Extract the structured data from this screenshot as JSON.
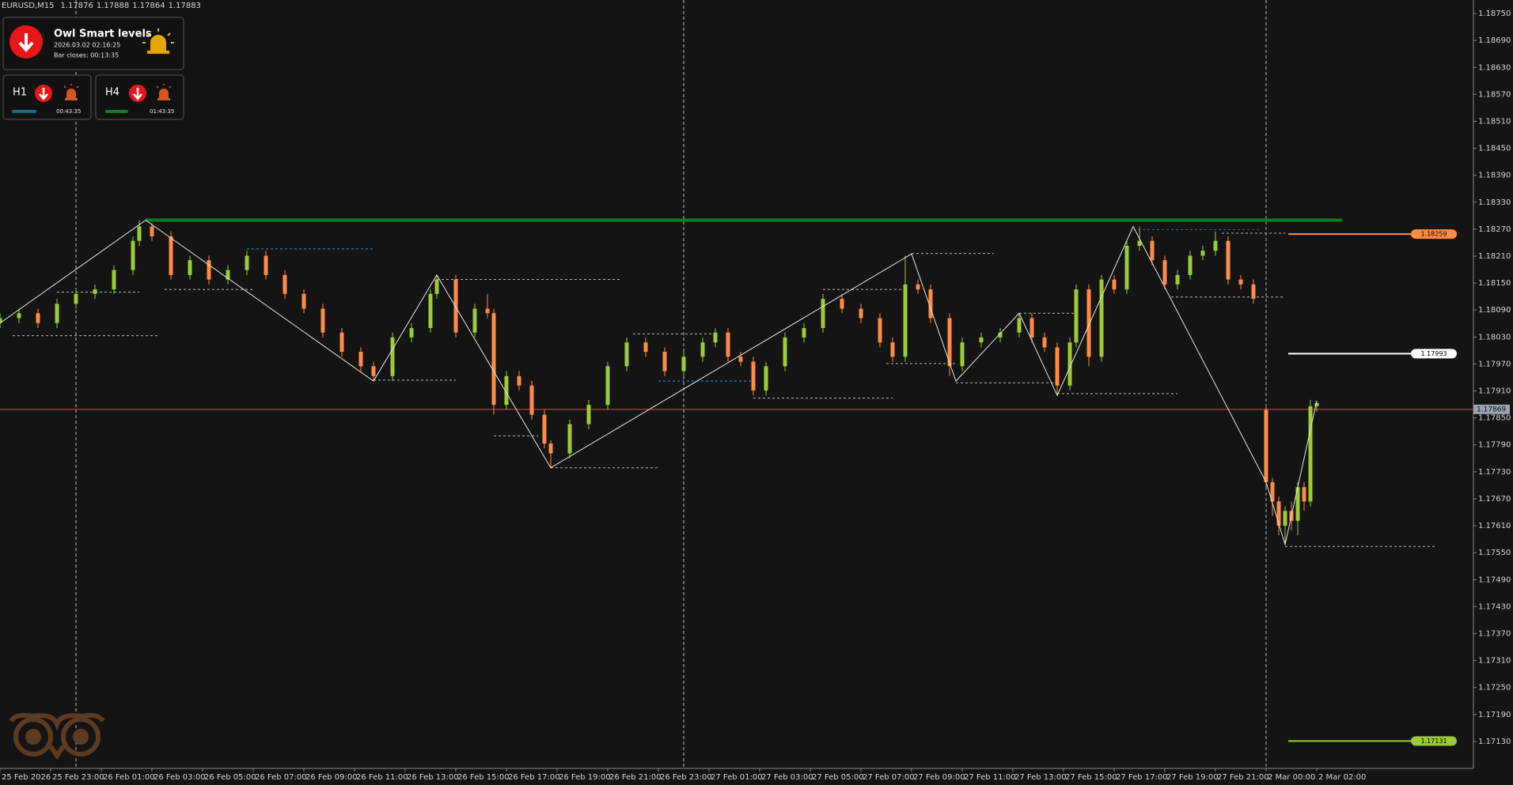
{
  "chart_data": {
    "type": "candlestick",
    "title": "EURUSD,M15",
    "header_ohlc": [
      1.17876,
      1.17888,
      1.17864,
      1.17883
    ],
    "xlim": [
      0,
      232.75
    ],
    "ylim": [
      1.1707,
      1.1878
    ],
    "xticks": [
      {
        "value": 0,
        "label": "25 Feb 2026"
      },
      {
        "value": 8,
        "label": "25 Feb 23:00"
      },
      {
        "value": 16,
        "label": "26 Feb 01:00"
      },
      {
        "value": 24,
        "label": "26 Feb 03:00"
      },
      {
        "value": 32,
        "label": "26 Feb 05:00"
      },
      {
        "value": 40,
        "label": "26 Feb 07:00"
      },
      {
        "value": 48,
        "label": "26 Feb 09:00"
      },
      {
        "value": 56,
        "label": "26 Feb 11:00"
      },
      {
        "value": 64,
        "label": "26 Feb 13:00"
      },
      {
        "value": 72,
        "label": "26 Feb 15:00"
      },
      {
        "value": 80,
        "label": "26 Feb 17:00"
      },
      {
        "value": 88,
        "label": "26 Feb 19:00"
      },
      {
        "value": 96,
        "label": "26 Feb 21:00"
      },
      {
        "value": 104,
        "label": "26 Feb 23:00"
      },
      {
        "value": 112,
        "label": "27 Feb 01:00"
      },
      {
        "value": 120,
        "label": "27 Feb 03:00"
      },
      {
        "value": 128,
        "label": "27 Feb 05:00"
      },
      {
        "value": 136,
        "label": "27 Feb 07:00"
      },
      {
        "value": 144,
        "label": "27 Feb 09:00"
      },
      {
        "value": 152,
        "label": "27 Feb 11:00"
      },
      {
        "value": 160,
        "label": "27 Feb 13:00"
      },
      {
        "value": 168,
        "label": "27 Feb 15:00"
      },
      {
        "value": 176,
        "label": "27 Feb 17:00"
      },
      {
        "value": 184,
        "label": "27 Feb 19:00"
      },
      {
        "value": 192,
        "label": "27 Feb 21:00"
      },
      {
        "value": 200,
        "label": "2 Mar 00:00"
      },
      {
        "value": 208,
        "label": "2 Mar 02:00"
      }
    ],
    "yticks": [
      {
        "value": 1.1875,
        "label": "1.18750"
      },
      {
        "value": 1.1869,
        "label": "1.18690"
      },
      {
        "value": 1.1863,
        "label": "1.18630"
      },
      {
        "value": 1.1857,
        "label": "1.18570"
      },
      {
        "value": 1.1851,
        "label": "1.18510"
      },
      {
        "value": 1.1845,
        "label": "1.18450"
      },
      {
        "value": 1.1839,
        "label": "1.18390"
      },
      {
        "value": 1.1833,
        "label": "1.18330"
      },
      {
        "value": 1.1827,
        "label": "1.18270"
      },
      {
        "value": 1.1821,
        "label": "1.18210"
      },
      {
        "value": 1.1815,
        "label": "1.18150"
      },
      {
        "value": 1.1809,
        "label": "1.18090"
      },
      {
        "value": 1.1803,
        "label": "1.18030"
      },
      {
        "value": 1.1797,
        "label": "1.17970"
      },
      {
        "value": 1.1791,
        "label": "1.17910"
      },
      {
        "value": 1.1785,
        "label": "1.17850"
      },
      {
        "value": 1.1779,
        "label": "1.17790"
      },
      {
        "value": 1.1773,
        "label": "1.17730"
      },
      {
        "value": 1.1767,
        "label": "1.17670"
      },
      {
        "value": 1.1761,
        "label": "1.17610"
      },
      {
        "value": 1.1755,
        "label": "1.17550"
      },
      {
        "value": 1.1749,
        "label": "1.17490"
      },
      {
        "value": 1.1743,
        "label": "1.17430"
      },
      {
        "value": 1.1737,
        "label": "1.17370"
      },
      {
        "value": 1.1731,
        "label": "1.17310"
      },
      {
        "value": 1.1725,
        "label": "1.17250"
      },
      {
        "value": 1.1719,
        "label": "1.17190"
      },
      {
        "value": 1.1713,
        "label": "1.17130"
      }
    ],
    "xlines": [
      12,
      108,
      200
    ],
    "up_color": "#9acd32",
    "down_color": "#ff8c42",
    "x": [
      0,
      3,
      6,
      9,
      12,
      15,
      18,
      21,
      22,
      24,
      27,
      30,
      33,
      36,
      39,
      42,
      45,
      48,
      51,
      54,
      57,
      59,
      62,
      65,
      68,
      69,
      72,
      75,
      77,
      78,
      80,
      82,
      84,
      86,
      87,
      90,
      93,
      96,
      99,
      102,
      105,
      108,
      111,
      113,
      115,
      117,
      119,
      121,
      124,
      127,
      130,
      133,
      136,
      139,
      141,
      143,
      145,
      147,
      150,
      152,
      155,
      158,
      161,
      163,
      165,
      167,
      169,
      170,
      172,
      174,
      176,
      178,
      180,
      182,
      184,
      186,
      188,
      190,
      192,
      194,
      196,
      198,
      200,
      201,
      202,
      203,
      204,
      205,
      206,
      207,
      208
    ],
    "open": [
      1.18061,
      1.18072,
      1.18083,
      1.18061,
      1.18104,
      1.18126,
      1.18136,
      1.18179,
      1.18244,
      1.18276,
      1.18254,
      1.18168,
      1.18201,
      1.18158,
      1.18179,
      1.18211,
      1.18168,
      1.18126,
      1.18093,
      1.1804,
      1.17997,
      1.17965,
      1.17943,
      1.18029,
      1.1805,
      1.18126,
      1.18158,
      1.1804,
      1.18093,
      1.18083,
      1.17879,
      1.17943,
      1.17922,
      1.17857,
      1.17793,
      1.17771,
      1.17836,
      1.17879,
      1.17965,
      1.18018,
      1.17997,
      1.17954,
      1.17986,
      1.18018,
      1.1804,
      1.17986,
      1.17975,
      1.17911,
      1.17965,
      1.18029,
      1.1805,
      1.18115,
      1.18093,
      1.18072,
      1.18018,
      1.17986,
      1.18147,
      1.18136,
      1.18072,
      1.17965,
      1.18018,
      1.18029,
      1.1804,
      1.18072,
      1.18029,
      1.18007,
      1.17922,
      1.18018,
      1.18136,
      1.17986,
      1.18158,
      1.18136,
      1.18233,
      1.18244,
      1.18201,
      1.18147,
      1.18168,
      1.18211,
      1.18222,
      1.18244,
      1.18158,
      1.18147,
      1.17868,
      1.17707,
      1.17664,
      1.1761,
      1.17643,
      1.17621,
      1.17696,
      1.17664,
      1.17876
    ],
    "high": [
      1.18083,
      1.18093,
      1.18093,
      1.18115,
      1.18136,
      1.18147,
      1.1819,
      1.18254,
      1.1829,
      1.18283,
      1.18265,
      1.18211,
      1.18211,
      1.1819,
      1.18222,
      1.18222,
      1.18179,
      1.18136,
      1.18104,
      1.1805,
      1.18007,
      1.17975,
      1.1804,
      1.18061,
      1.18136,
      1.18168,
      1.18168,
      1.18104,
      1.18126,
      1.18093,
      1.17954,
      1.17954,
      1.17932,
      1.17868,
      1.178,
      1.17846,
      1.1789,
      1.17975,
      1.18029,
      1.18029,
      1.18007,
      1.17997,
      1.18029,
      1.1805,
      1.1805,
      1.17997,
      1.17986,
      1.17975,
      1.1804,
      1.18061,
      1.18126,
      1.18126,
      1.18104,
      1.18083,
      1.18029,
      1.18211,
      1.18158,
      1.18147,
      1.18083,
      1.18029,
      1.1804,
      1.1805,
      1.18083,
      1.18083,
      1.1804,
      1.18018,
      1.18029,
      1.18147,
      1.18147,
      1.18168,
      1.18168,
      1.18244,
      1.18276,
      1.18254,
      1.18211,
      1.18179,
      1.18222,
      1.18233,
      1.18265,
      1.18254,
      1.18168,
      1.18158,
      1.17879,
      1.17717,
      1.17675,
      1.17653,
      1.17664,
      1.17707,
      1.17707,
      1.1789,
      1.17888
    ],
    "low": [
      1.1805,
      1.18061,
      1.1805,
      1.1805,
      1.18093,
      1.18115,
      1.18126,
      1.18168,
      1.18233,
      1.18244,
      1.18158,
      1.18158,
      1.18147,
      1.18147,
      1.18168,
      1.18158,
      1.18115,
      1.18083,
      1.18029,
      1.17986,
      1.17954,
      1.17932,
      1.17932,
      1.18018,
      1.1804,
      1.18115,
      1.18029,
      1.18029,
      1.18072,
      1.17857,
      1.17868,
      1.17911,
      1.17846,
      1.17782,
      1.17739,
      1.1776,
      1.17825,
      1.17868,
      1.17954,
      1.17986,
      1.17943,
      1.17943,
      1.17975,
      1.18007,
      1.17975,
      1.17965,
      1.179,
      1.179,
      1.17954,
      1.18018,
      1.1804,
      1.18083,
      1.18061,
      1.18007,
      1.17975,
      1.17975,
      1.18126,
      1.18061,
      1.17943,
      1.17954,
      1.18007,
      1.18018,
      1.18029,
      1.18018,
      1.17997,
      1.179,
      1.17911,
      1.18007,
      1.17965,
      1.17975,
      1.18126,
      1.18126,
      1.18222,
      1.1819,
      1.18136,
      1.18136,
      1.18158,
      1.18201,
      1.18211,
      1.18147,
      1.18136,
      1.18104,
      1.17696,
      1.17632,
      1.17589,
      1.17568,
      1.176,
      1.17589,
      1.17643,
      1.17653,
      1.17864
    ],
    "close": [
      1.18072,
      1.18083,
      1.18061,
      1.18104,
      1.18126,
      1.18136,
      1.18179,
      1.18244,
      1.18276,
      1.18254,
      1.18168,
      1.18201,
      1.18158,
      1.18179,
      1.18211,
      1.18168,
      1.18126,
      1.18093,
      1.1804,
      1.17997,
      1.17965,
      1.17943,
      1.18029,
      1.1805,
      1.18126,
      1.18158,
      1.1804,
      1.18093,
      1.18083,
      1.17879,
      1.17943,
      1.17922,
      1.17857,
      1.17793,
      1.17771,
      1.17836,
      1.17879,
      1.17965,
      1.18018,
      1.17997,
      1.17954,
      1.17986,
      1.18018,
      1.1804,
      1.17986,
      1.17975,
      1.17911,
      1.17965,
      1.18029,
      1.1805,
      1.18115,
      1.18093,
      1.18072,
      1.18018,
      1.17986,
      1.18147,
      1.18136,
      1.18072,
      1.17965,
      1.18018,
      1.18029,
      1.1804,
      1.18072,
      1.18029,
      1.18007,
      1.17922,
      1.18018,
      1.18136,
      1.17986,
      1.18158,
      1.18136,
      1.18233,
      1.18244,
      1.18201,
      1.18147,
      1.18168,
      1.18211,
      1.18222,
      1.18244,
      1.18158,
      1.18147,
      1.18115,
      1.17707,
      1.17664,
      1.1761,
      1.17643,
      1.17621,
      1.17696,
      1.17664,
      1.17876,
      1.17883
    ],
    "zigzag": {
      "color": "#e6e6e6",
      "x": [
        0,
        23,
        59,
        69,
        87,
        144,
        151,
        161,
        167,
        179,
        200,
        203,
        208
      ],
      "y": [
        1.18061,
        1.1829,
        1.17932,
        1.18168,
        1.17739,
        1.18215,
        1.17932,
        1.18083,
        1.179,
        1.18276,
        1.17707,
        1.17568,
        1.17888
      ]
    },
    "resistance": {
      "x": [
        23,
        212
      ],
      "y": 1.1829,
      "color": "#0b7d12"
    },
    "levels": [
      {
        "x": [
          2,
          25
        ],
        "y": 1.18033,
        "color": "#b8b8b8"
      },
      {
        "x": [
          9,
          22
        ],
        "y": 1.1813,
        "color": "#b8b8b8"
      },
      {
        "x": [
          26,
          40
        ],
        "y": 1.18136,
        "color": "#b8b8b8"
      },
      {
        "x": [
          39,
          59
        ],
        "y": 1.18226,
        "color": "#3a8fc7"
      },
      {
        "x": [
          59,
          72
        ],
        "y": 1.17934,
        "color": "#b8b8b8"
      },
      {
        "x": [
          69,
          98
        ],
        "y": 1.18158,
        "color": "#b8b8b8"
      },
      {
        "x": [
          78,
          85
        ],
        "y": 1.1781,
        "color": "#b8b8b8"
      },
      {
        "x": [
          87,
          104
        ],
        "y": 1.17739,
        "color": "#b8b8b8"
      },
      {
        "x": [
          100,
          113
        ],
        "y": 1.18037,
        "color": "#b8b8b8"
      },
      {
        "x": [
          104,
          119
        ],
        "y": 1.17932,
        "color": "#3a8fc7"
      },
      {
        "x": [
          119,
          141
        ],
        "y": 1.17894,
        "color": "#b8b8b8"
      },
      {
        "x": [
          130,
          143
        ],
        "y": 1.18136,
        "color": "#b8b8b8"
      },
      {
        "x": [
          144,
          157
        ],
        "y": 1.18216,
        "color": "#b8b8b8"
      },
      {
        "x": [
          140,
          151
        ],
        "y": 1.17971,
        "color": "#b8b8b8"
      },
      {
        "x": [
          151,
          167
        ],
        "y": 1.17928,
        "color": "#b8b8b8"
      },
      {
        "x": [
          161,
          170
        ],
        "y": 1.18083,
        "color": "#b8b8b8"
      },
      {
        "x": [
          167,
          186
        ],
        "y": 1.17904,
        "color": "#b8b8b8"
      },
      {
        "x": [
          179,
          199
        ],
        "y": 1.18269,
        "color": "#2a5f8f"
      },
      {
        "x": [
          193,
          203
        ],
        "y": 1.18261,
        "color": "#b8b8b8"
      },
      {
        "x": [
          185,
          203
        ],
        "y": 1.18119,
        "color": "#b8b8b8"
      },
      {
        "x": [
          203,
          227
        ],
        "y": 1.17564,
        "color": "#b8b8b8"
      }
    ],
    "markers": [
      {
        "value": 1.18259,
        "color": "#ff8c42"
      },
      {
        "value": 1.17993,
        "color": "#ffffff"
      },
      {
        "value": 1.17131,
        "color": "#9acd32"
      }
    ],
    "current_price": {
      "value": 1.17869,
      "color": "#c9504a"
    }
  },
  "panel": {
    "title": "Owl Smart levels",
    "time": "2026.03.02 02:16:25",
    "bar_close": "Bar closes: 00:13:35",
    "h1": {
      "label": "H1",
      "timer": "00:43:35"
    },
    "h4": {
      "label": "H4",
      "timer": "01:43:35"
    }
  }
}
